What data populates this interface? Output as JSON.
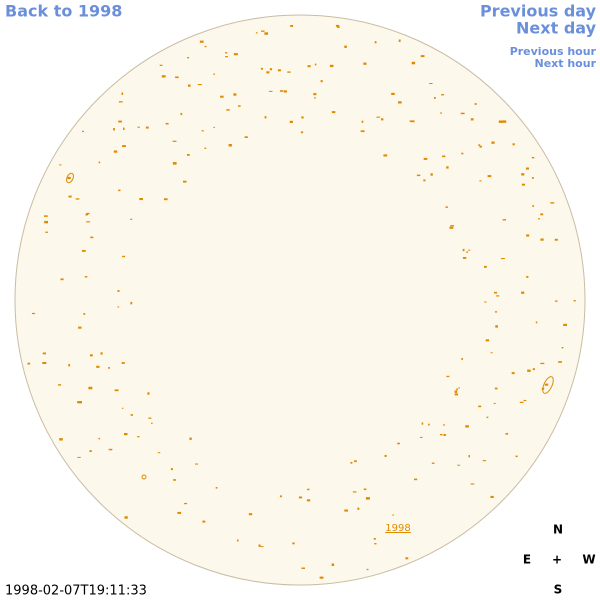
{
  "links": {
    "back": "Back to 1998",
    "previous_day": "Previous day",
    "next_day": "Next day",
    "previous_hour": "Previous hour",
    "next_hour": "Next hour"
  },
  "disk_label": "1998",
  "compass": {
    "north": "N",
    "east": "E",
    "center": "+",
    "west": "W",
    "south": "S"
  },
  "timestamp": "1998-02-07T19:11:33"
}
